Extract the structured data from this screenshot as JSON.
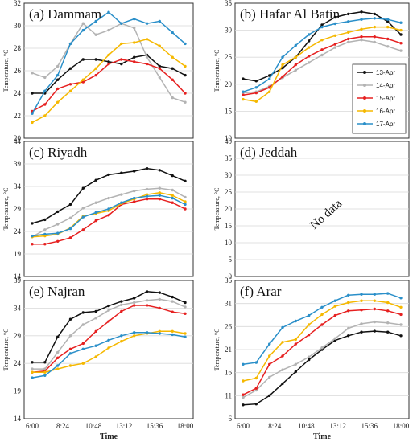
{
  "x_ticks": [
    "6:00",
    "8:24",
    "10:48",
    "13:12",
    "15:36",
    "18:00"
  ],
  "x_label": "Time",
  "y_label": "Temperature, °C",
  "legend": {
    "placement": "inside panel (b), right",
    "series": [
      {
        "name": "13-Apr",
        "color": "#111111"
      },
      {
        "name": "14-Apr",
        "color": "#b3b3b3"
      },
      {
        "name": "15-Apr",
        "color": "#e62020"
      },
      {
        "name": "16-Apr",
        "color": "#f5b800"
      },
      {
        "name": "17-Apr",
        "color": "#2a8fc9"
      }
    ]
  },
  "chart_data": [
    {
      "type": "line",
      "title": "(a) Dammam",
      "xlabel": "",
      "ylabel": "Temperature, °C",
      "ylim": [
        20,
        32
      ],
      "yticks": [
        20,
        22,
        24,
        26,
        28,
        30,
        32
      ],
      "x": [
        "6:00",
        "7:00",
        "8:00",
        "9:00",
        "10:00",
        "11:00",
        "12:00",
        "13:00",
        "14:00",
        "15:00",
        "16:00",
        "17:00",
        "18:00"
      ],
      "series": [
        {
          "name": "13-Apr",
          "values": [
            24,
            24,
            25.2,
            26.2,
            27,
            27,
            26.8,
            26.6,
            27.2,
            27.4,
            26.4,
            26.2,
            25.6
          ]
        },
        {
          "name": "14-Apr",
          "values": [
            25.8,
            25.4,
            26.4,
            28.4,
            30.2,
            29.2,
            29.6,
            30.2,
            29.8,
            27.2,
            25.4,
            23.6,
            23.2
          ]
        },
        {
          "name": "15-Apr",
          "values": [
            22.4,
            23,
            24.4,
            24.8,
            25,
            25.6,
            26.6,
            27,
            26.8,
            26.6,
            26.2,
            25.2,
            24
          ]
        },
        {
          "name": "16-Apr",
          "values": [
            21.4,
            22,
            23.2,
            24.2,
            25.2,
            26.2,
            27.4,
            28.4,
            28.5,
            28.8,
            28.2,
            27.2,
            26.4
          ]
        },
        {
          "name": "17-Apr",
          "values": [
            22.2,
            24.2,
            25.6,
            28.4,
            29.6,
            30.4,
            31.2,
            30.2,
            30.6,
            30.2,
            30.4,
            29.4,
            28.4
          ]
        }
      ]
    },
    {
      "type": "line",
      "title": "(b) Hafar Al Batin",
      "xlabel": "",
      "ylabel": "Temperature, °C",
      "ylim": [
        10,
        35
      ],
      "yticks": [
        10,
        15,
        20,
        25,
        30,
        35
      ],
      "x": [
        "6:00",
        "7:00",
        "8:00",
        "9:00",
        "10:00",
        "11:00",
        "12:00",
        "13:00",
        "14:00",
        "15:00",
        "16:00",
        "17:00",
        "18:00"
      ],
      "series": [
        {
          "name": "13-Apr",
          "values": [
            21,
            20.6,
            21.6,
            23,
            25,
            28,
            31,
            32.4,
            33,
            33.4,
            33,
            31.6,
            29.2
          ]
        },
        {
          "name": "14-Apr",
          "values": [
            18.4,
            18.6,
            19.6,
            21.2,
            22.6,
            24,
            25.4,
            26.8,
            27.8,
            28.2,
            27.8,
            27,
            26.2
          ]
        },
        {
          "name": "15-Apr",
          "values": [
            18,
            18.4,
            19.4,
            21.4,
            23.6,
            25.2,
            26.4,
            27.4,
            28.4,
            28.8,
            28.8,
            28.4,
            27.6
          ]
        },
        {
          "name": "16-Apr",
          "values": [
            17.2,
            16.8,
            18.6,
            23.6,
            25,
            26.8,
            28.2,
            29,
            29.6,
            30.2,
            30.6,
            30.6,
            30
          ]
        },
        {
          "name": "17-Apr",
          "values": [
            18.6,
            19.4,
            21,
            25,
            27.2,
            29.2,
            30.6,
            31.2,
            31.6,
            32,
            32.2,
            32,
            31.4
          ]
        }
      ]
    },
    {
      "type": "line",
      "title": "(c) Riyadh",
      "xlabel": "",
      "ylabel": "Temperature, °C",
      "ylim": [
        14,
        44
      ],
      "yticks": [
        14,
        19,
        24,
        29,
        34,
        39,
        44
      ],
      "x": [
        "6:00",
        "7:00",
        "8:00",
        "9:00",
        "10:00",
        "11:00",
        "12:00",
        "13:00",
        "14:00",
        "15:00",
        "16:00",
        "17:00",
        "18:00"
      ],
      "series": [
        {
          "name": "13-Apr",
          "values": [
            25.8,
            26.6,
            28.4,
            30,
            33.6,
            35.4,
            36.6,
            37,
            37.4,
            38,
            37.6,
            36.4,
            35.2
          ]
        },
        {
          "name": "14-Apr",
          "values": [
            22.8,
            24.4,
            25.6,
            27,
            29.2,
            30.4,
            31.4,
            32.2,
            33,
            33.4,
            33.6,
            33.2,
            31.6
          ]
        },
        {
          "name": "15-Apr",
          "values": [
            21.2,
            21.2,
            21.8,
            22.6,
            24.4,
            26.4,
            27.6,
            30,
            30.6,
            31.2,
            31.2,
            30.4,
            29
          ]
        },
        {
          "name": "16-Apr",
          "values": [
            22.8,
            23,
            23.4,
            24.8,
            27.4,
            28,
            28.6,
            30.2,
            31.2,
            32.2,
            32.6,
            32,
            30.6
          ]
        },
        {
          "name": "17-Apr",
          "values": [
            23,
            23.4,
            23.6,
            24.6,
            27.2,
            28.2,
            29,
            30.4,
            31.4,
            31.8,
            32,
            31.4,
            30
          ]
        }
      ]
    },
    {
      "type": "line",
      "title": "(d) Jeddah",
      "xlabel": "",
      "ylabel": "Temperature, °C",
      "ylim": [
        0,
        40
      ],
      "yticks": [
        0,
        5,
        10,
        15,
        20,
        25,
        30,
        35,
        40
      ],
      "annotation": "No data",
      "x": [],
      "series": []
    },
    {
      "type": "line",
      "title": "(e) Najran",
      "xlabel": "Time",
      "ylabel": "Temperature, °C",
      "ylim": [
        14,
        39
      ],
      "yticks": [
        14,
        19,
        24,
        29,
        34,
        39
      ],
      "x": [
        "6:00",
        "7:00",
        "8:00",
        "9:00",
        "10:00",
        "11:00",
        "12:00",
        "13:00",
        "14:00",
        "15:00",
        "16:00",
        "17:00",
        "18:00"
      ],
      "series": [
        {
          "name": "13-Apr",
          "values": [
            24.2,
            24.2,
            28.8,
            32,
            33.2,
            33.4,
            34.4,
            35.2,
            35.8,
            37,
            36.8,
            36,
            35
          ]
        },
        {
          "name": "14-Apr",
          "values": [
            23,
            23,
            26,
            29,
            31,
            32.2,
            33.6,
            34.6,
            35,
            35.4,
            35.6,
            35.2,
            34.2
          ]
        },
        {
          "name": "15-Apr",
          "values": [
            22.4,
            22.6,
            25,
            26.6,
            27.6,
            29.8,
            31.6,
            33.4,
            34.5,
            34.5,
            34,
            33.3,
            33
          ]
        },
        {
          "name": "16-Apr",
          "values": [
            22.4,
            22.4,
            23,
            23.6,
            24,
            25.2,
            26.8,
            28,
            29,
            29.4,
            29.8,
            29.8,
            29.4
          ]
        },
        {
          "name": "17-Apr",
          "values": [
            21.4,
            21.8,
            23.6,
            25.8,
            26.6,
            27.2,
            28.2,
            29,
            29.6,
            29.6,
            29.4,
            29.2,
            28.8
          ]
        }
      ]
    },
    {
      "type": "line",
      "title": "(f) Arar",
      "xlabel": "Time",
      "ylabel": "Temperature, °C",
      "ylim": [
        6,
        36
      ],
      "yticks": [
        6,
        11,
        16,
        21,
        26,
        31,
        36
      ],
      "x": [
        "6:00",
        "7:00",
        "8:00",
        "9:00",
        "10:00",
        "11:00",
        "12:00",
        "13:00",
        "14:00",
        "15:00",
        "16:00",
        "17:00",
        "18:00"
      ],
      "series": [
        {
          "name": "13-Apr",
          "values": [
            9,
            9.2,
            11,
            13.6,
            16.2,
            18.8,
            21,
            23,
            24,
            24.8,
            25,
            24.8,
            24
          ]
        },
        {
          "name": "14-Apr",
          "values": [
            10.6,
            12.2,
            15,
            16.6,
            17.8,
            19.4,
            21.4,
            23.4,
            25.6,
            26.6,
            27,
            26.8,
            26.4
          ]
        },
        {
          "name": "15-Apr",
          "values": [
            11.2,
            12.6,
            17.8,
            19.6,
            22.2,
            24.2,
            26.4,
            28.4,
            29.4,
            29.6,
            29.8,
            29.4,
            28.6
          ]
        },
        {
          "name": "16-Apr",
          "values": [
            14.2,
            14.8,
            19.6,
            22.6,
            23.2,
            26.4,
            28.6,
            30.4,
            31.2,
            31.6,
            31.6,
            31.2,
            30.2
          ]
        },
        {
          "name": "17-Apr",
          "values": [
            17.8,
            18.2,
            22.2,
            25.8,
            27.2,
            28.4,
            30.2,
            31.6,
            32.8,
            33,
            33,
            33.2,
            32.2
          ]
        }
      ]
    }
  ]
}
